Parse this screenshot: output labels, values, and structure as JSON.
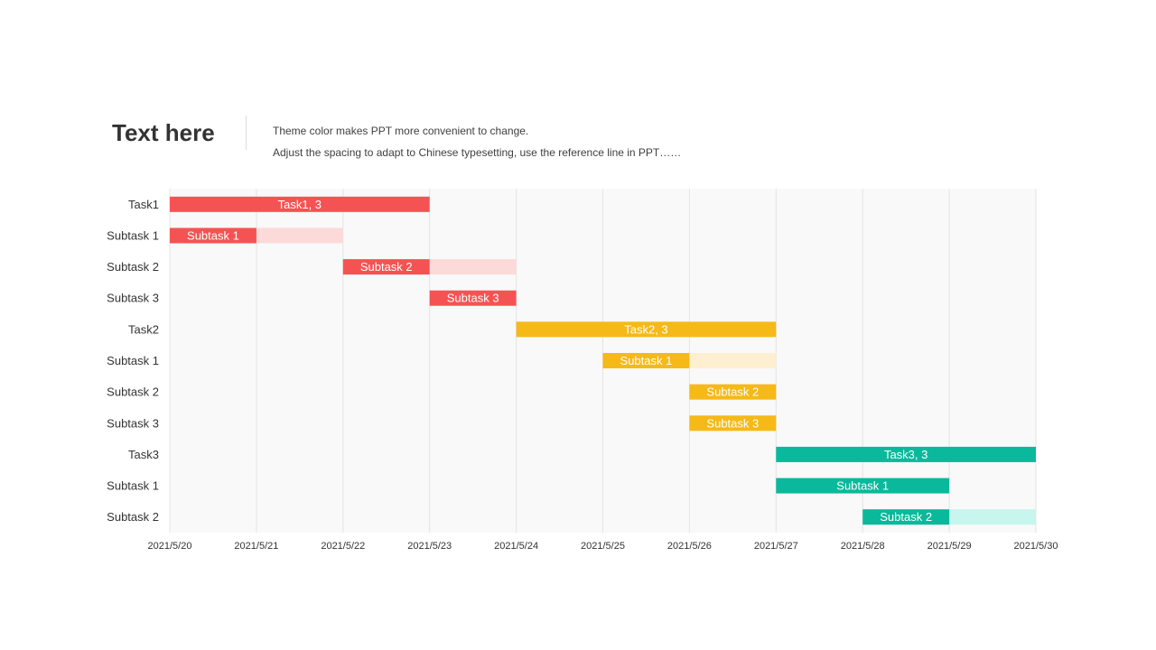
{
  "header": {
    "title": "Text here",
    "description_lines": [
      "Theme color makes PPT more convenient  to change.",
      "Adjust  the spacing  to adapt to Chinese  typesetting,  use  the  reference line  in  PPT……"
    ]
  },
  "chart_data": {
    "type": "gantt",
    "title": "",
    "xlabel": "",
    "ylabel": "",
    "grid": true,
    "x_ticks": [
      "2021/5/20",
      "2021/5/21",
      "2021/5/22",
      "2021/5/23",
      "2021/5/24",
      "2021/5/25",
      "2021/5/26",
      "2021/5/27",
      "2021/5/28",
      "2021/5/29",
      "2021/5/30"
    ],
    "xlim": [
      "2021/5/20",
      "2021/5/30"
    ],
    "colors": {
      "task1": "#f55353",
      "task1_light": "#fcdada",
      "task2": "#f5b918",
      "task2_light": "#fdefcf",
      "task3": "#0ab99b",
      "task3_light": "#c6f6ed",
      "plot_background": "#f9f9f9",
      "grid": "#e4e4e4"
    },
    "rows": [
      {
        "label": "Task1",
        "bar_label": "Task1, 3",
        "start": "2021/5/20",
        "end": "2021/5/23",
        "extended_end": null,
        "color": "task1"
      },
      {
        "label": "Subtask 1",
        "bar_label": "Subtask 1",
        "start": "2021/5/20",
        "end": "2021/5/21",
        "extended_end": "2021/5/22",
        "color": "task1"
      },
      {
        "label": "Subtask 2",
        "bar_label": "Subtask 2",
        "start": "2021/5/22",
        "end": "2021/5/23",
        "extended_end": "2021/5/24",
        "color": "task1"
      },
      {
        "label": "Subtask 3",
        "bar_label": "Subtask 3",
        "start": "2021/5/23",
        "end": "2021/5/24",
        "extended_end": null,
        "color": "task1"
      },
      {
        "label": "Task2",
        "bar_label": "Task2, 3",
        "start": "2021/5/24",
        "end": "2021/5/27",
        "extended_end": null,
        "color": "task2"
      },
      {
        "label": "Subtask 1",
        "bar_label": "Subtask 1",
        "start": "2021/5/25",
        "end": "2021/5/26",
        "extended_end": "2021/5/27",
        "color": "task2"
      },
      {
        "label": "Subtask 2",
        "bar_label": "Subtask 2",
        "start": "2021/5/26",
        "end": "2021/5/27",
        "extended_end": null,
        "color": "task2"
      },
      {
        "label": "Subtask 3",
        "bar_label": "Subtask 3",
        "start": "2021/5/26",
        "end": "2021/5/27",
        "extended_end": null,
        "color": "task2"
      },
      {
        "label": "Task3",
        "bar_label": "Task3, 3",
        "start": "2021/5/27",
        "end": "2021/5/30",
        "extended_end": null,
        "color": "task3"
      },
      {
        "label": "Subtask 1",
        "bar_label": "Subtask 1",
        "start": "2021/5/27",
        "end": "2021/5/29",
        "extended_end": null,
        "color": "task3"
      },
      {
        "label": "Subtask 2",
        "bar_label": "Subtask 2",
        "start": "2021/5/28",
        "end": "2021/5/29",
        "extended_end": "2021/5/30",
        "color": "task3"
      }
    ]
  }
}
